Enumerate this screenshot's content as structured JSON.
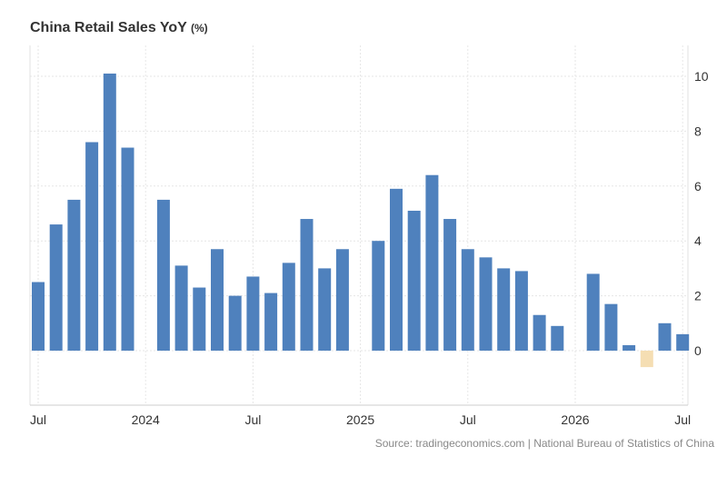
{
  "chart_data": {
    "type": "bar",
    "title": "China Retail Sales YoY",
    "unit": "(%)",
    "source": "Source: tradingeconomics.com | National Bureau of Statistics of China",
    "ylim": [
      -2,
      11
    ],
    "yticks": [
      0,
      2,
      4,
      6,
      8,
      10
    ],
    "x_tick_labels": [
      "Jul",
      "2024",
      "Jul",
      "2025",
      "Jul",
      "2026",
      "Jul"
    ],
    "grid": true,
    "positive_color": "#4f81bd",
    "negative_color": "#f5deb3",
    "categories": [
      "2023-07",
      "2023-08",
      "2023-09",
      "2023-10",
      "2023-11",
      "2023-12",
      "2024-01",
      "2024-02",
      "2024-03",
      "2024-04",
      "2024-05",
      "2024-06",
      "2024-07",
      "2024-08",
      "2024-09",
      "2024-10",
      "2024-11",
      "2024-12",
      "2025-01",
      "2025-02",
      "2025-03",
      "2025-04",
      "2025-05",
      "2025-06",
      "2025-07",
      "2025-08",
      "2025-09",
      "2025-10",
      "2025-11",
      "2025-12",
      "2026-01",
      "2026-02",
      "2026-03",
      "2026-04",
      "2026-05",
      "2026-06",
      "2026-07"
    ],
    "values": [
      2.5,
      4.6,
      5.5,
      7.6,
      10.1,
      7.4,
      null,
      5.5,
      3.1,
      2.3,
      3.7,
      2.0,
      2.7,
      2.1,
      3.2,
      4.8,
      3.0,
      3.7,
      null,
      4.0,
      5.9,
      5.1,
      6.4,
      4.8,
      3.7,
      3.4,
      3.0,
      2.9,
      1.3,
      0.9,
      null,
      2.8,
      1.7,
      0.2,
      -0.6,
      1.0,
      0.6
    ]
  }
}
